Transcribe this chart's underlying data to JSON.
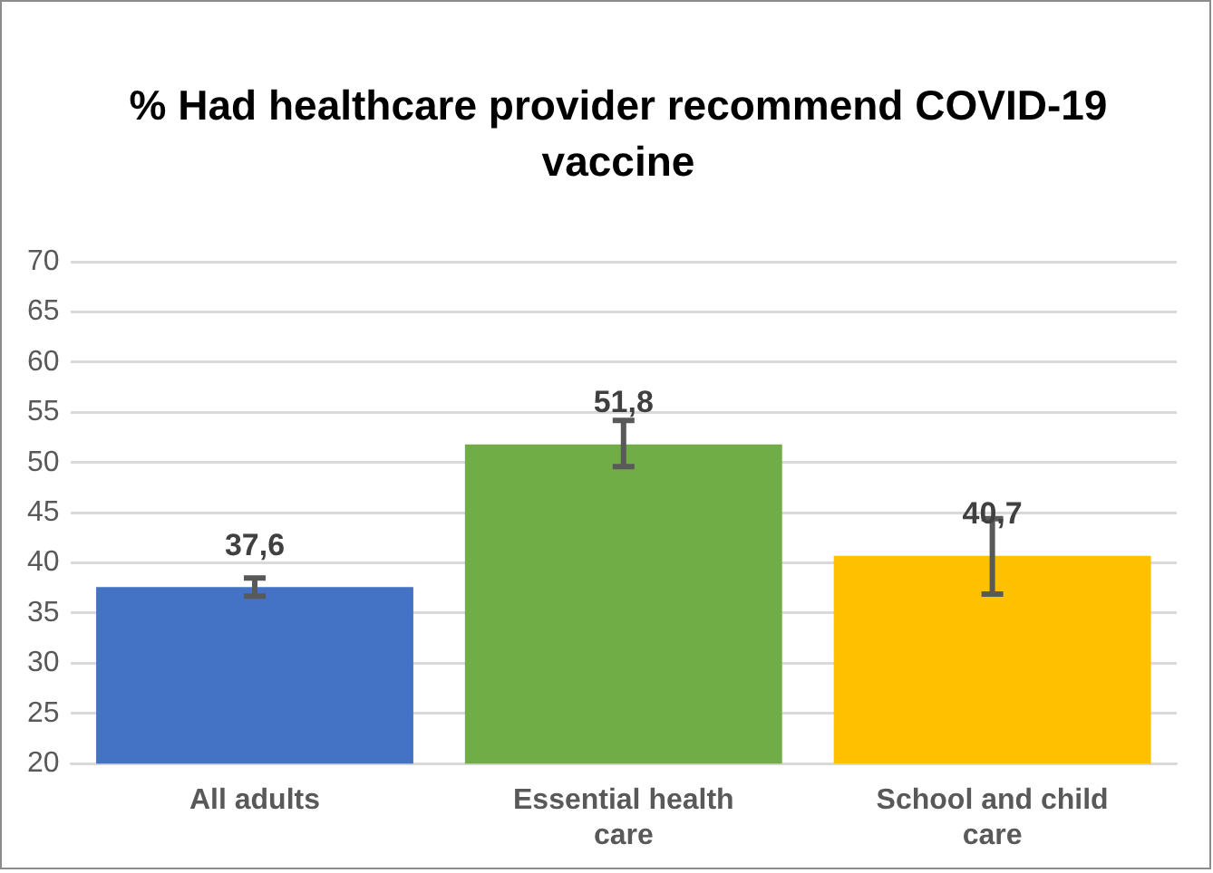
{
  "chart_data": {
    "type": "bar",
    "title": "% Had healthcare provider recommend COVID-19 vaccine",
    "categories": [
      "All adults",
      "Essential health care",
      "School and child care"
    ],
    "values": [
      37.6,
      51.8,
      40.7
    ],
    "colors": [
      "#4472c4",
      "#70ad47",
      "#ffc000"
    ],
    "value_labels": [
      "37,6",
      "51,8",
      "40,7"
    ],
    "errors": [
      [
        36.7,
        38.5
      ],
      [
        49.6,
        54.2
      ],
      [
        36.9,
        44.4
      ]
    ],
    "ylim": [
      20,
      70
    ],
    "yticks": [
      20,
      25,
      30,
      35,
      40,
      45,
      50,
      55,
      60,
      65,
      70
    ],
    "grid": "y",
    "legend": false
  }
}
